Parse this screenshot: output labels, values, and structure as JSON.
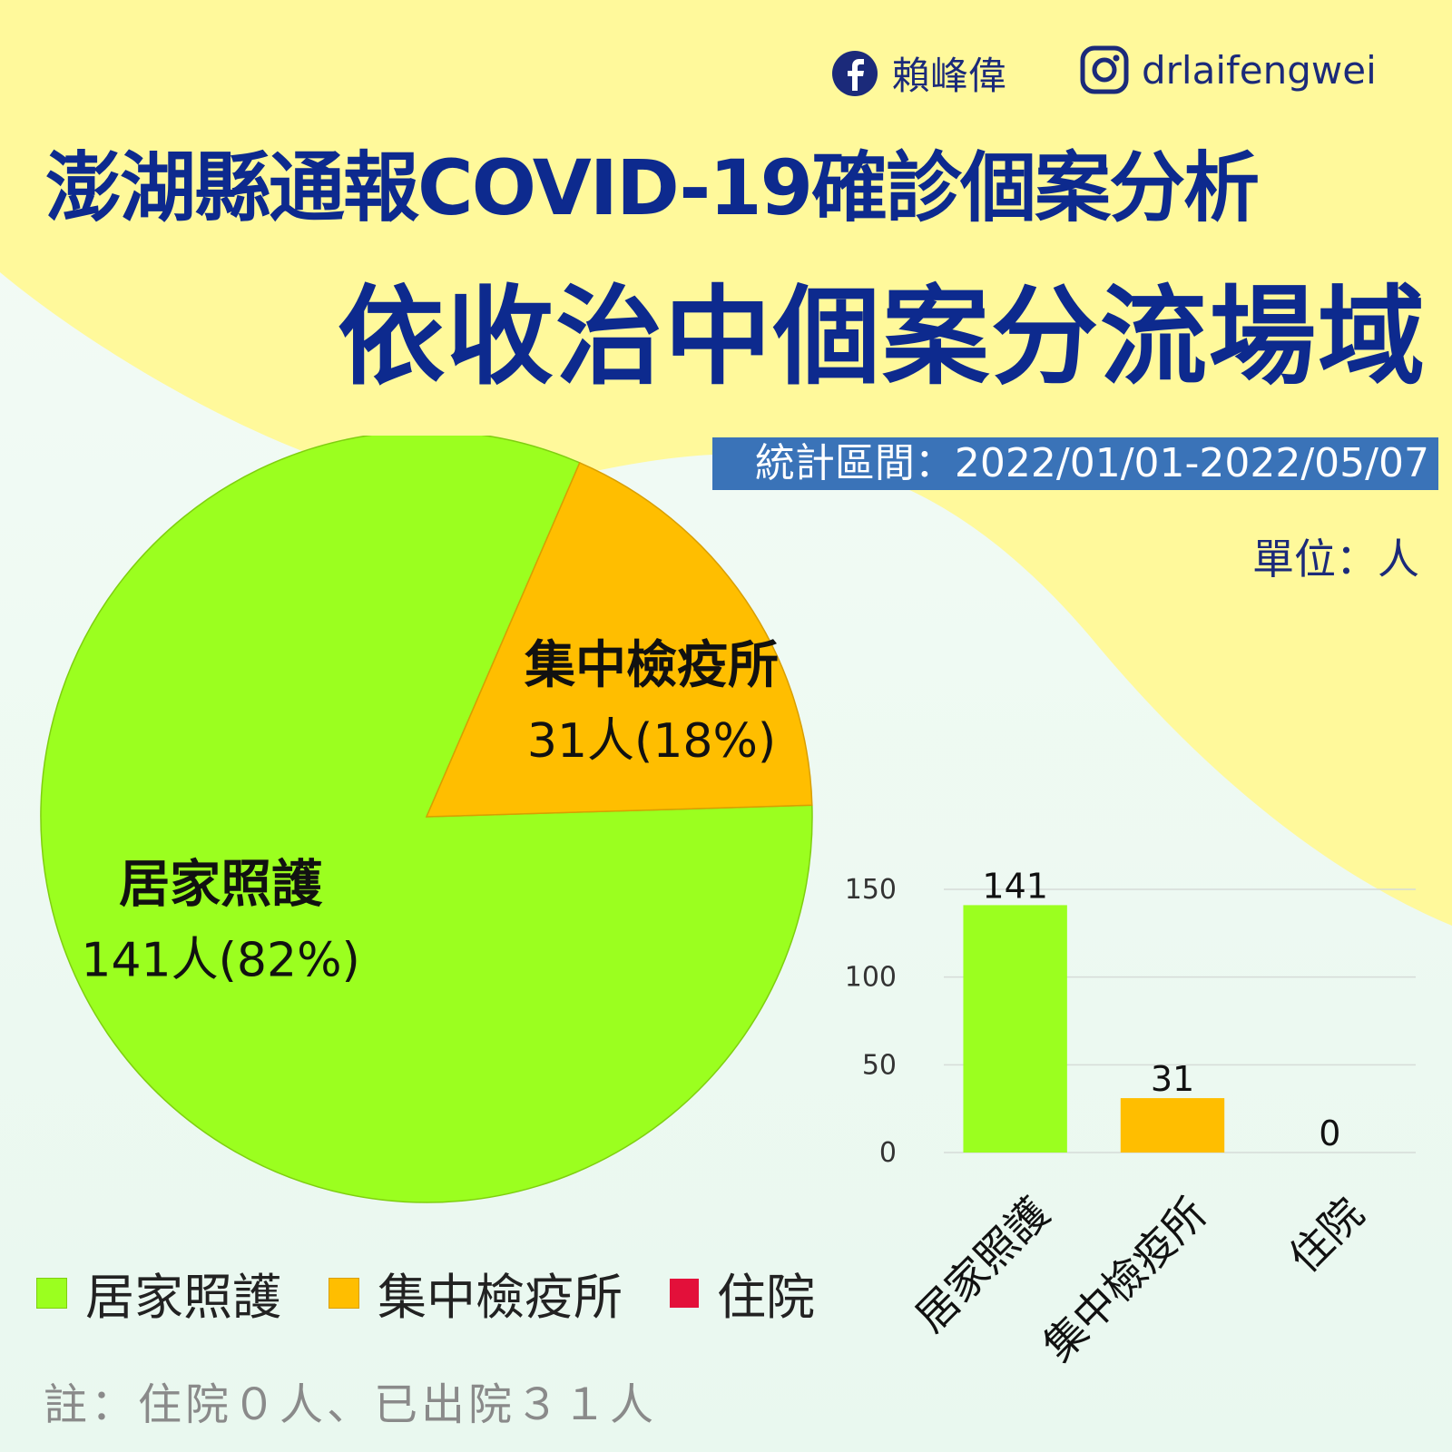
{
  "social": {
    "facebook_name": "賴峰偉",
    "instagram_handle": "drlaifengwei",
    "facebook_icon": "facebook-icon",
    "instagram_icon": "instagram-icon"
  },
  "title_line1": "澎湖縣通報COVID-19確診個案分析",
  "title_line2": "依收治中個案分流場域",
  "period": "統計區間：2022/01/01-2022/05/07",
  "unit": "單位：人",
  "colors": {
    "home": "#9bff1f",
    "quarantine": "#ffbe00",
    "hospital": "#e3103a",
    "title": "#0d2a8e",
    "banner": "#3a73b8",
    "yellow_bg": "#fff99b"
  },
  "chart_data": [
    {
      "type": "pie",
      "slices": [
        {
          "label": "居家照護",
          "value": 141,
          "percent": 82,
          "display": "141人(82%)"
        },
        {
          "label": "集中檢疫所",
          "value": 31,
          "percent": 18,
          "display": "31人(18%)"
        }
      ],
      "legend": [
        "居家照護",
        "集中檢疫所",
        "住院"
      ],
      "legend_position": "bottom"
    },
    {
      "type": "bar",
      "categories": [
        "居家照護",
        "集中檢疫所",
        "住院"
      ],
      "values": [
        141,
        31,
        0
      ],
      "ylim": [
        0,
        150
      ],
      "yticks": [
        "0",
        "50",
        "100",
        "150"
      ],
      "grid": true
    }
  ],
  "note": "註：住院０人、已出院３１人"
}
